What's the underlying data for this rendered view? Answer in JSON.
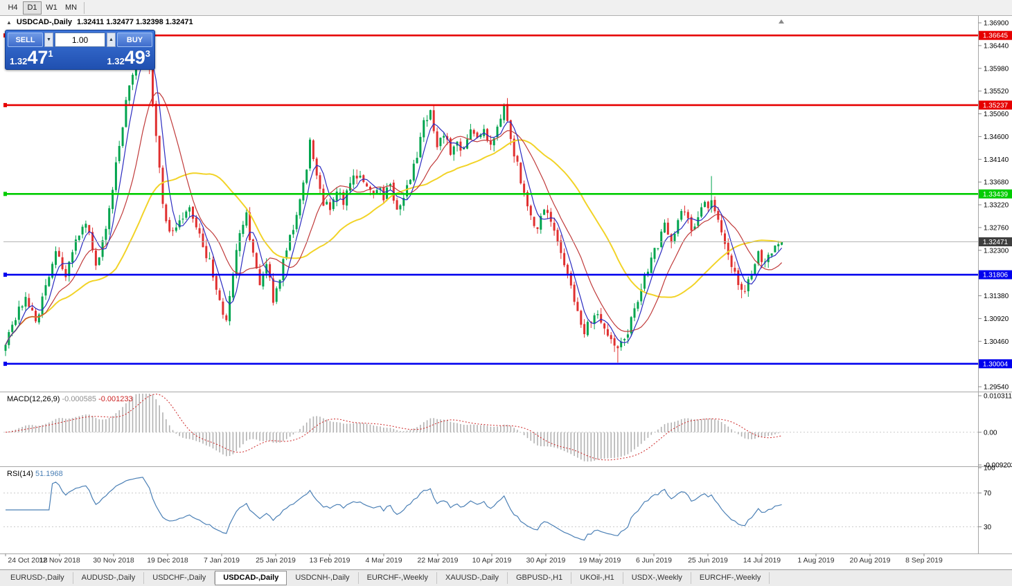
{
  "toolbar": {
    "periods": [
      "H4",
      "D1",
      "W1",
      "MN"
    ],
    "active_period": "D1"
  },
  "chart_header": {
    "collapse_icon": "▲",
    "symbol": "USDCAD-,Daily",
    "ohlc": "1.32411 1.32477 1.32398 1.32471"
  },
  "trade_panel": {
    "sell_label": "SELL",
    "buy_label": "BUY",
    "volume": "1.00",
    "volume_down_icon": "▼",
    "volume_up_icon": "▲",
    "sell_price": {
      "big": "1.32",
      "pips": "47",
      "sup": "1"
    },
    "buy_price": {
      "big": "1.32",
      "pips": "49",
      "sup": "3"
    }
  },
  "price_axis": {
    "labels": [
      "1.36900",
      "1.36440",
      "1.35980",
      "1.35520",
      "1.35060",
      "1.34600",
      "1.34140",
      "1.33680",
      "1.33220",
      "1.32760",
      "1.32300",
      "1.31840",
      "1.31380",
      "1.30920",
      "1.30460",
      "1.30000",
      "1.29540"
    ]
  },
  "levels": [
    {
      "price": 1.36645,
      "label": "1.36645",
      "color": "#e60000"
    },
    {
      "price": 1.35237,
      "label": "1.35237",
      "color": "#e60000"
    },
    {
      "price": 1.33439,
      "label": "1.33439",
      "color": "#00cc00"
    },
    {
      "price": 1.31806,
      "label": "1.31806",
      "color": "#0000ee"
    },
    {
      "price": 1.30004,
      "label": "1.30004",
      "color": "#0000ee"
    }
  ],
  "current_price": {
    "price": 1.32471,
    "label": "1.32471",
    "color": "#3f3f3f"
  },
  "macd_panel": {
    "label": "MACD(12,26,9)",
    "value_main": "-0.000585",
    "value_signal": "-0.001233",
    "axis": [
      "0.010311",
      "0.00",
      "-0.009203"
    ]
  },
  "rsi_panel": {
    "label": "RSI(14)",
    "value": "51.1968",
    "axis": [
      "100",
      "70",
      "30"
    ]
  },
  "date_axis": [
    "24 Oct 2018",
    "12 Nov 2018",
    "30 Nov 2018",
    "19 Dec 2018",
    "7 Jan 2019",
    "25 Jan 2019",
    "13 Feb 2019",
    "4 Mar 2019",
    "22 Mar 2019",
    "10 Apr 2019",
    "30 Apr 2019",
    "19 May 2019",
    "6 Jun 2019",
    "25 Jun 2019",
    "14 Jul 2019",
    "1 Aug 2019",
    "20 Aug 2019",
    "8 Sep 2019"
  ],
  "tabs": {
    "items": [
      "EURUSD-,Daily",
      "AUDUSD-,Daily",
      "USDCHF-,Daily",
      "USDCAD-,Daily",
      "USDCNH-,Daily",
      "EURCHF-,Weekly",
      "XAUUSD-,Daily",
      "GBPUSD-,H1",
      "UKOil-,H1",
      "USDX-,Weekly",
      "EURCHF-,Weekly"
    ],
    "active": "USDCAD-,Daily",
    "active_index": 3
  },
  "chart_data": {
    "type": "candlestick",
    "symbol": "USDCAD",
    "timeframe": "Daily",
    "title": "USDCAD-,Daily",
    "ohlc_last": {
      "open": 1.32411,
      "high": 1.32477,
      "low": 1.32398,
      "close": 1.32471
    },
    "ylim": [
      1.2954,
      1.369
    ],
    "y_tick_step": 0.0046,
    "num_bars": 233,
    "bars_per_label": 13,
    "x_tick_labels": [
      "24 Oct 2018",
      "12 Nov 2018",
      "30 Nov 2018",
      "19 Dec 2018",
      "7 Jan 2019",
      "25 Jan 2019",
      "13 Feb 2019",
      "4 Mar 2019",
      "22 Mar 2019",
      "10 Apr 2019",
      "30 Apr 2019",
      "19 May 2019",
      "6 Jun 2019",
      "25 Jun 2019",
      "14 Jul 2019",
      "1 Aug 2019",
      "20 Aug 2019",
      "8 Sep 2019"
    ],
    "up_color": "#00a44e",
    "down_color": "#e03030",
    "price_anchors": [
      [
        0,
        1.3045
      ],
      [
        3,
        1.3095
      ],
      [
        6,
        1.314
      ],
      [
        9,
        1.3085
      ],
      [
        12,
        1.316
      ],
      [
        15,
        1.3235
      ],
      [
        18,
        1.318
      ],
      [
        21,
        1.3245
      ],
      [
        24,
        1.329
      ],
      [
        27,
        1.3195
      ],
      [
        30,
        1.328
      ],
      [
        33,
        1.34
      ],
      [
        36,
        1.353
      ],
      [
        39,
        1.3625
      ],
      [
        41,
        1.365
      ],
      [
        43,
        1.3595
      ],
      [
        45,
        1.347
      ],
      [
        47,
        1.333
      ],
      [
        49,
        1.3265
      ],
      [
        52,
        1.329
      ],
      [
        55,
        1.331
      ],
      [
        58,
        1.3255
      ],
      [
        61,
        1.3205
      ],
      [
        64,
        1.3125
      ],
      [
        66,
        1.309
      ],
      [
        68,
        1.318
      ],
      [
        70,
        1.3265
      ],
      [
        72,
        1.33
      ],
      [
        74,
        1.3215
      ],
      [
        76,
        1.316
      ],
      [
        78,
        1.3205
      ],
      [
        80,
        1.313
      ],
      [
        82,
        1.318
      ],
      [
        84,
        1.3225
      ],
      [
        86,
        1.328
      ],
      [
        89,
        1.336
      ],
      [
        91,
        1.3445
      ],
      [
        93,
        1.3385
      ],
      [
        95,
        1.333
      ],
      [
        97,
        1.331
      ],
      [
        99,
        1.335
      ],
      [
        101,
        1.333
      ],
      [
        103,
        1.336
      ],
      [
        105,
        1.3385
      ],
      [
        107,
        1.336
      ],
      [
        109,
        1.335
      ],
      [
        111,
        1.336
      ],
      [
        113,
        1.334
      ],
      [
        115,
        1.3355
      ],
      [
        117,
        1.332
      ],
      [
        119,
        1.334
      ],
      [
        121,
        1.338
      ],
      [
        123,
        1.3425
      ],
      [
        125,
        1.349
      ],
      [
        127,
        1.3505
      ],
      [
        129,
        1.344
      ],
      [
        131,
        1.3465
      ],
      [
        133,
        1.343
      ],
      [
        135,
        1.345
      ],
      [
        137,
        1.343
      ],
      [
        139,
        1.3465
      ],
      [
        141,
        1.345
      ],
      [
        143,
        1.348
      ],
      [
        145,
        1.3445
      ],
      [
        147,
        1.348
      ],
      [
        149,
        1.3515
      ],
      [
        151,
        1.3455
      ],
      [
        153,
        1.34
      ],
      [
        155,
        1.335
      ],
      [
        157,
        1.33
      ],
      [
        159,
        1.327
      ],
      [
        161,
        1.3315
      ],
      [
        163,
        1.329
      ],
      [
        165,
        1.324
      ],
      [
        167,
        1.32
      ],
      [
        169,
        1.315
      ],
      [
        171,
        1.31
      ],
      [
        173,
        1.307
      ],
      [
        175,
        1.309
      ],
      [
        177,
        1.311
      ],
      [
        179,
        1.307
      ],
      [
        181,
        1.3045
      ],
      [
        183,
        1.3025
      ],
      [
        185,
        1.305
      ],
      [
        187,
        1.3085
      ],
      [
        189,
        1.313
      ],
      [
        191,
        1.317
      ],
      [
        193,
        1.321
      ],
      [
        195,
        1.324
      ],
      [
        197,
        1.328
      ],
      [
        199,
        1.3245
      ],
      [
        201,
        1.329
      ],
      [
        203,
        1.331
      ],
      [
        205,
        1.327
      ],
      [
        207,
        1.33
      ],
      [
        209,
        1.332
      ],
      [
        211,
        1.333
      ],
      [
        213,
        1.329
      ],
      [
        215,
        1.325
      ],
      [
        217,
        1.32
      ],
      [
        219,
        1.316
      ],
      [
        221,
        1.314
      ],
      [
        223,
        1.319
      ],
      [
        225,
        1.323
      ],
      [
        227,
        1.32
      ],
      [
        229,
        1.323
      ],
      [
        232,
        1.32471
      ]
    ],
    "moving_averages": [
      {
        "period": 34,
        "color": "#f2d327",
        "width": 2
      },
      {
        "period": 13,
        "color": "#c03a3a",
        "width": 1.2
      },
      {
        "period": 5,
        "color": "#2b2bc0",
        "width": 1.2
      }
    ],
    "macd": {
      "fast": 12,
      "slow": 26,
      "signal": 9,
      "ylim": [
        -0.009203,
        0.010311
      ],
      "hist_color": "#b2b2b2",
      "signal_color": "#cc2222"
    },
    "rsi": {
      "period": 14,
      "color": "#4a7fb5",
      "levels": [
        30,
        70
      ],
      "ylim": [
        0,
        100
      ]
    }
  }
}
